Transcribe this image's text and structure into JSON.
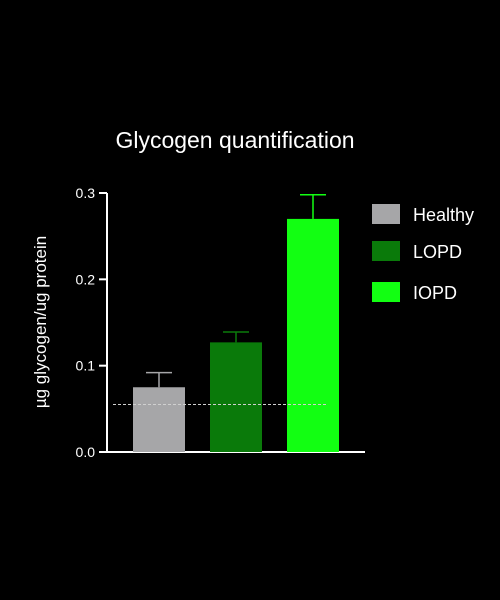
{
  "chart_data": {
    "type": "bar",
    "title": "Glycogen quantification",
    "xlabel": "",
    "ylabel": "µg glycogen/ug protein",
    "ylim": [
      0,
      0.3
    ],
    "yticks": [
      "0.0",
      "0.1",
      "0.2",
      "0.3"
    ],
    "categories": [
      "Healthy",
      "LOPD",
      "IOPD"
    ],
    "values": [
      0.075,
      0.127,
      0.27
    ],
    "errors": [
      0.017,
      0.012,
      0.028
    ],
    "colors": [
      "#a6a6a8",
      "#0a7a0a",
      "#12ff12"
    ],
    "reference_line": 0.055,
    "grid": false,
    "legend": {
      "position": "right",
      "entries": [
        "Healthy",
        "LOPD",
        "IOPD"
      ]
    }
  }
}
